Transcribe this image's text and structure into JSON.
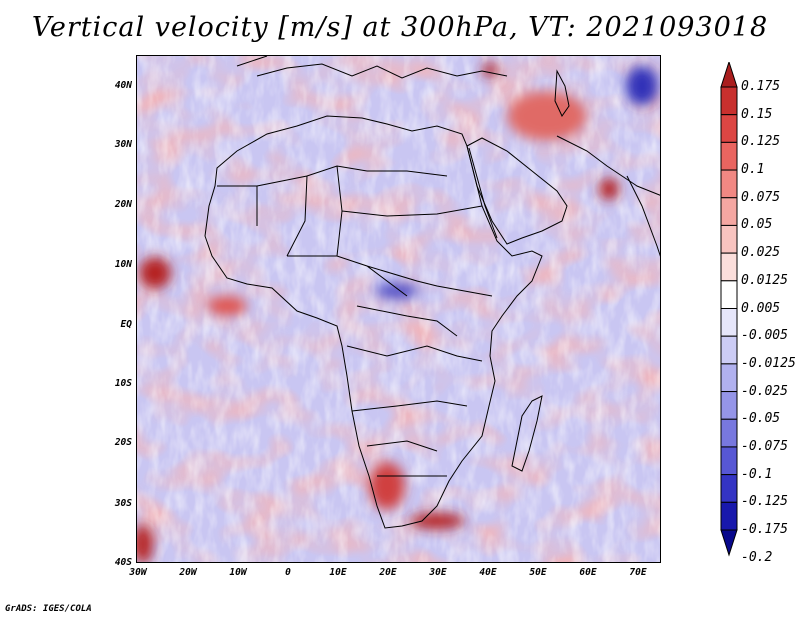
{
  "title": "Vertical velocity [m/s] at 300hPa, VT: 2021093018",
  "credit": "GrADS: IGES/COLA",
  "map": {
    "lat_labels": [
      "40N",
      "30N",
      "20N",
      "10N",
      "EQ",
      "10S",
      "20S",
      "30S",
      "40S"
    ],
    "lon_labels": [
      "30W",
      "20W",
      "10W",
      "0",
      "10E",
      "20E",
      "30E",
      "40E",
      "50E",
      "60E",
      "70E"
    ],
    "extent": {
      "lon_min": -30,
      "lon_max": 75,
      "lat_min": -40,
      "lat_max": 45
    },
    "coastline_color": "#000000",
    "field_description": "vertical velocity shading"
  },
  "colorbar": {
    "labels": [
      "0.175",
      "0.15",
      "0.125",
      "0.1",
      "0.075",
      "0.05",
      "0.025",
      "0.0125",
      "0.005",
      "-0.005",
      "-0.0125",
      "-0.025",
      "-0.05",
      "-0.075",
      "-0.1",
      "-0.125",
      "-0.175",
      "-0.2"
    ],
    "colors": [
      "#aa1e1e",
      "#c8302e",
      "#dc4643",
      "#ea6560",
      "#f18883",
      "#f5a7a2",
      "#f8c4c0",
      "#fbdedb",
      "#ffffff",
      "#e6e6fa",
      "#ccccf5",
      "#b1b1ef",
      "#9595e8",
      "#7878df",
      "#5757d4",
      "#3434c4",
      "#1818ac",
      "#08088c"
    ]
  }
}
